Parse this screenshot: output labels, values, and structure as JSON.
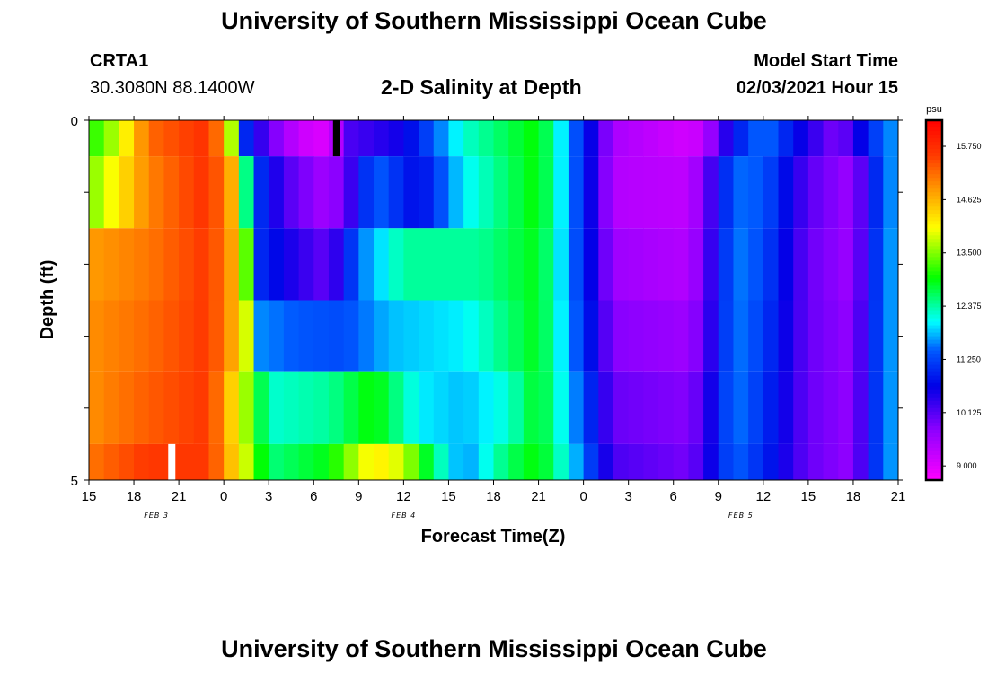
{
  "header": {
    "title": "University of Southern Mississippi Ocean Cube",
    "station_id": "CRTA1",
    "coordinates": "30.3080N 88.1400W",
    "subtitle": "2-D Salinity at Depth",
    "model_start_label": "Model Start Time",
    "model_start_value": "02/03/2021 Hour 15"
  },
  "footer": {
    "title": "University of Southern Mississippi Ocean Cube"
  },
  "chart_data": {
    "type": "heatmap",
    "title": "2-D Salinity at Depth",
    "xlabel": "Forecast Time(Z)",
    "ylabel": "Depth (ft)",
    "ylim": [
      0,
      5
    ],
    "y_ticks": [
      "0",
      "5"
    ],
    "x_tick_labels": [
      "15",
      "18",
      "21",
      "0",
      "3",
      "6",
      "9",
      "12",
      "15",
      "18",
      "21",
      "0",
      "3",
      "6",
      "9",
      "12",
      "15",
      "18",
      "21"
    ],
    "date_labels": [
      {
        "text": "FEB 3",
        "at_tick": 1.5
      },
      {
        "text": "FEB 4",
        "at_tick": 7
      },
      {
        "text": "FEB 5",
        "at_tick": 14.5
      }
    ],
    "colorbar": {
      "unit": "psu",
      "vmin": 8.7,
      "vmax": 16.3,
      "tick_labels": [
        "15.750",
        "14.625",
        "13.500",
        "12.375",
        "11.250",
        "10.125",
        "9.000"
      ],
      "tick_values": [
        15.75,
        14.625,
        13.5,
        12.375,
        11.25,
        10.125,
        9.0
      ]
    },
    "x_hours_start": 0,
    "x_hours_end": 54,
    "depth_layers": [
      "0-0.5",
      "0.5-1.5",
      "1.5-2.5",
      "2.5-3.5",
      "3.5-4.5",
      "4.5-5"
    ],
    "layer_keypoints": [
      [
        [
          0,
          13.0
        ],
        [
          1,
          13.4
        ],
        [
          2,
          13.8
        ],
        [
          4,
          15.2
        ],
        [
          8,
          15.7
        ],
        [
          9.2,
          14.5
        ],
        [
          10.5,
          11.0
        ],
        [
          12,
          10.0
        ],
        [
          14,
          9.2
        ],
        [
          16,
          9.0
        ],
        [
          17.5,
          10.2
        ],
        [
          21,
          10.6
        ],
        [
          25,
          12.2
        ],
        [
          30,
          13.0
        ],
        [
          33,
          11.0
        ],
        [
          35,
          9.5
        ],
        [
          40,
          9.1
        ],
        [
          41,
          9.3
        ],
        [
          43,
          10.8
        ],
        [
          45,
          11.6
        ],
        [
          47,
          10.8
        ],
        [
          50,
          9.8
        ],
        [
          53,
          11.5
        ],
        [
          54,
          11.7
        ]
      ],
      [
        [
          0,
          13.4
        ],
        [
          2,
          14.2
        ],
        [
          4,
          15.0
        ],
        [
          8,
          15.7
        ],
        [
          9.6,
          14.6
        ],
        [
          11,
          11.3
        ],
        [
          13,
          10.2
        ],
        [
          16,
          9.5
        ],
        [
          17.5,
          10.3
        ],
        [
          19,
          11.5
        ],
        [
          22,
          10.7
        ],
        [
          25,
          12.0
        ],
        [
          30,
          13.0
        ],
        [
          33,
          11.0
        ],
        [
          35,
          9.4
        ],
        [
          40,
          9.3
        ],
        [
          41,
          9.8
        ],
        [
          43,
          11.5
        ],
        [
          45,
          11.4
        ],
        [
          48,
          10.1
        ],
        [
          51,
          9.6
        ],
        [
          53,
          11.5
        ],
        [
          54,
          11.7
        ]
      ],
      [
        [
          0,
          14.8
        ],
        [
          4,
          15.1
        ],
        [
          8,
          15.6
        ],
        [
          10,
          14.5
        ],
        [
          11.5,
          11.0
        ],
        [
          13,
          10.6
        ],
        [
          16,
          10.0
        ],
        [
          18,
          11.5
        ],
        [
          21,
          12.4
        ],
        [
          26,
          12.4
        ],
        [
          30,
          12.9
        ],
        [
          33,
          11.0
        ],
        [
          35,
          9.6
        ],
        [
          40,
          9.4
        ],
        [
          41,
          9.9
        ],
        [
          43,
          11.6
        ],
        [
          45,
          11.3
        ],
        [
          48,
          10.0
        ],
        [
          51,
          9.6
        ],
        [
          53,
          11.6
        ],
        [
          54,
          11.7
        ]
      ],
      [
        [
          0,
          14.9
        ],
        [
          4,
          15.2
        ],
        [
          8,
          15.6
        ],
        [
          10.3,
          14.3
        ],
        [
          11.5,
          11.6
        ],
        [
          14,
          11.4
        ],
        [
          17,
          11.3
        ],
        [
          20,
          11.8
        ],
        [
          25,
          12.0
        ],
        [
          30,
          12.9
        ],
        [
          33,
          11.1
        ],
        [
          35,
          9.8
        ],
        [
          40,
          9.6
        ],
        [
          41,
          10.0
        ],
        [
          43,
          11.6
        ],
        [
          45,
          11.2
        ],
        [
          48,
          10.0
        ],
        [
          51,
          9.7
        ],
        [
          53,
          11.6
        ],
        [
          54,
          11.7
        ]
      ],
      [
        [
          0,
          14.9
        ],
        [
          4,
          15.3
        ],
        [
          8,
          15.6
        ],
        [
          10.5,
          13.6
        ],
        [
          12,
          12.2
        ],
        [
          16,
          12.4
        ],
        [
          19,
          13.0
        ],
        [
          22,
          12.0
        ],
        [
          25,
          11.8
        ],
        [
          28,
          12.2
        ],
        [
          30,
          12.9
        ],
        [
          33,
          11.3
        ],
        [
          35,
          10.0
        ],
        [
          40,
          9.8
        ],
        [
          41,
          10.2
        ],
        [
          43,
          11.6
        ],
        [
          45,
          11.1
        ],
        [
          48,
          10.0
        ],
        [
          51,
          9.7
        ],
        [
          53,
          11.6
        ],
        [
          54,
          11.7
        ]
      ],
      [
        [
          0,
          15.1
        ],
        [
          4,
          15.6
        ],
        [
          8,
          15.6
        ],
        [
          10.5,
          13.8
        ],
        [
          12,
          12.5
        ],
        [
          16,
          12.9
        ],
        [
          19,
          14.2
        ],
        [
          21,
          13.8
        ],
        [
          23,
          12.5
        ],
        [
          25,
          11.6
        ],
        [
          28,
          12.6
        ],
        [
          30,
          13.0
        ],
        [
          33,
          11.5
        ],
        [
          35,
          10.2
        ],
        [
          40,
          9.9
        ],
        [
          41,
          10.3
        ],
        [
          43,
          11.5
        ],
        [
          45,
          11.0
        ],
        [
          48,
          10.0
        ],
        [
          51,
          9.7
        ],
        [
          53,
          11.6
        ],
        [
          54,
          11.7
        ]
      ]
    ],
    "markers": [
      {
        "color": "#000000",
        "hour": 16.5,
        "depth_from": 0,
        "depth_to": 0.5
      },
      {
        "color": "#ffffff",
        "hour": 5.5,
        "depth_from": 4.5,
        "depth_to": 5
      }
    ],
    "grid": false
  }
}
